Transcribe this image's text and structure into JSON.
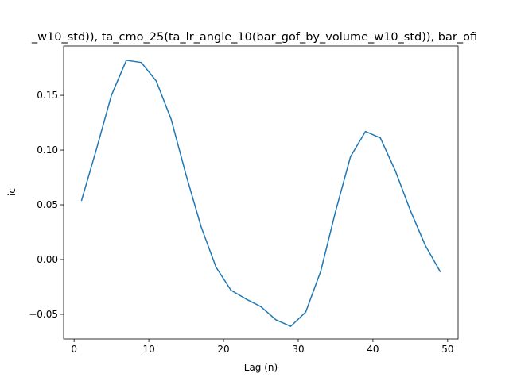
{
  "chart_data": {
    "type": "line",
    "title": "_w10_std)), ta_cmo_25(ta_lr_angle_10(bar_gof_by_volume_w10_std)), bar_ofi",
    "xlabel": "Lag (n)",
    "ylabel": "ic",
    "xlim": [
      -1.4,
      51.4
    ],
    "ylim": [
      -0.0725,
      0.195
    ],
    "xticks": [
      0,
      10,
      20,
      30,
      40,
      50
    ],
    "yticks": [
      -0.05,
      0.0,
      0.05,
      0.1,
      0.15
    ],
    "ytick_labels": [
      "−0.05",
      "0.00",
      "0.05",
      "0.10",
      "0.15"
    ],
    "grid": false,
    "series": [
      {
        "color": "#1f77b4",
        "x": [
          1,
          3,
          5,
          7,
          9,
          11,
          13,
          15,
          17,
          19,
          21,
          23,
          25,
          27,
          29,
          31,
          33,
          35,
          37,
          39,
          41,
          43,
          45,
          47,
          49
        ],
        "values": [
          0.054,
          0.101,
          0.15,
          0.182,
          0.18,
          0.163,
          0.128,
          0.077,
          0.03,
          -0.007,
          -0.028,
          -0.036,
          -0.043,
          -0.055,
          -0.061,
          -0.048,
          -0.011,
          0.044,
          0.094,
          0.117,
          0.111,
          0.081,
          0.045,
          0.013,
          -0.011
        ]
      }
    ]
  }
}
